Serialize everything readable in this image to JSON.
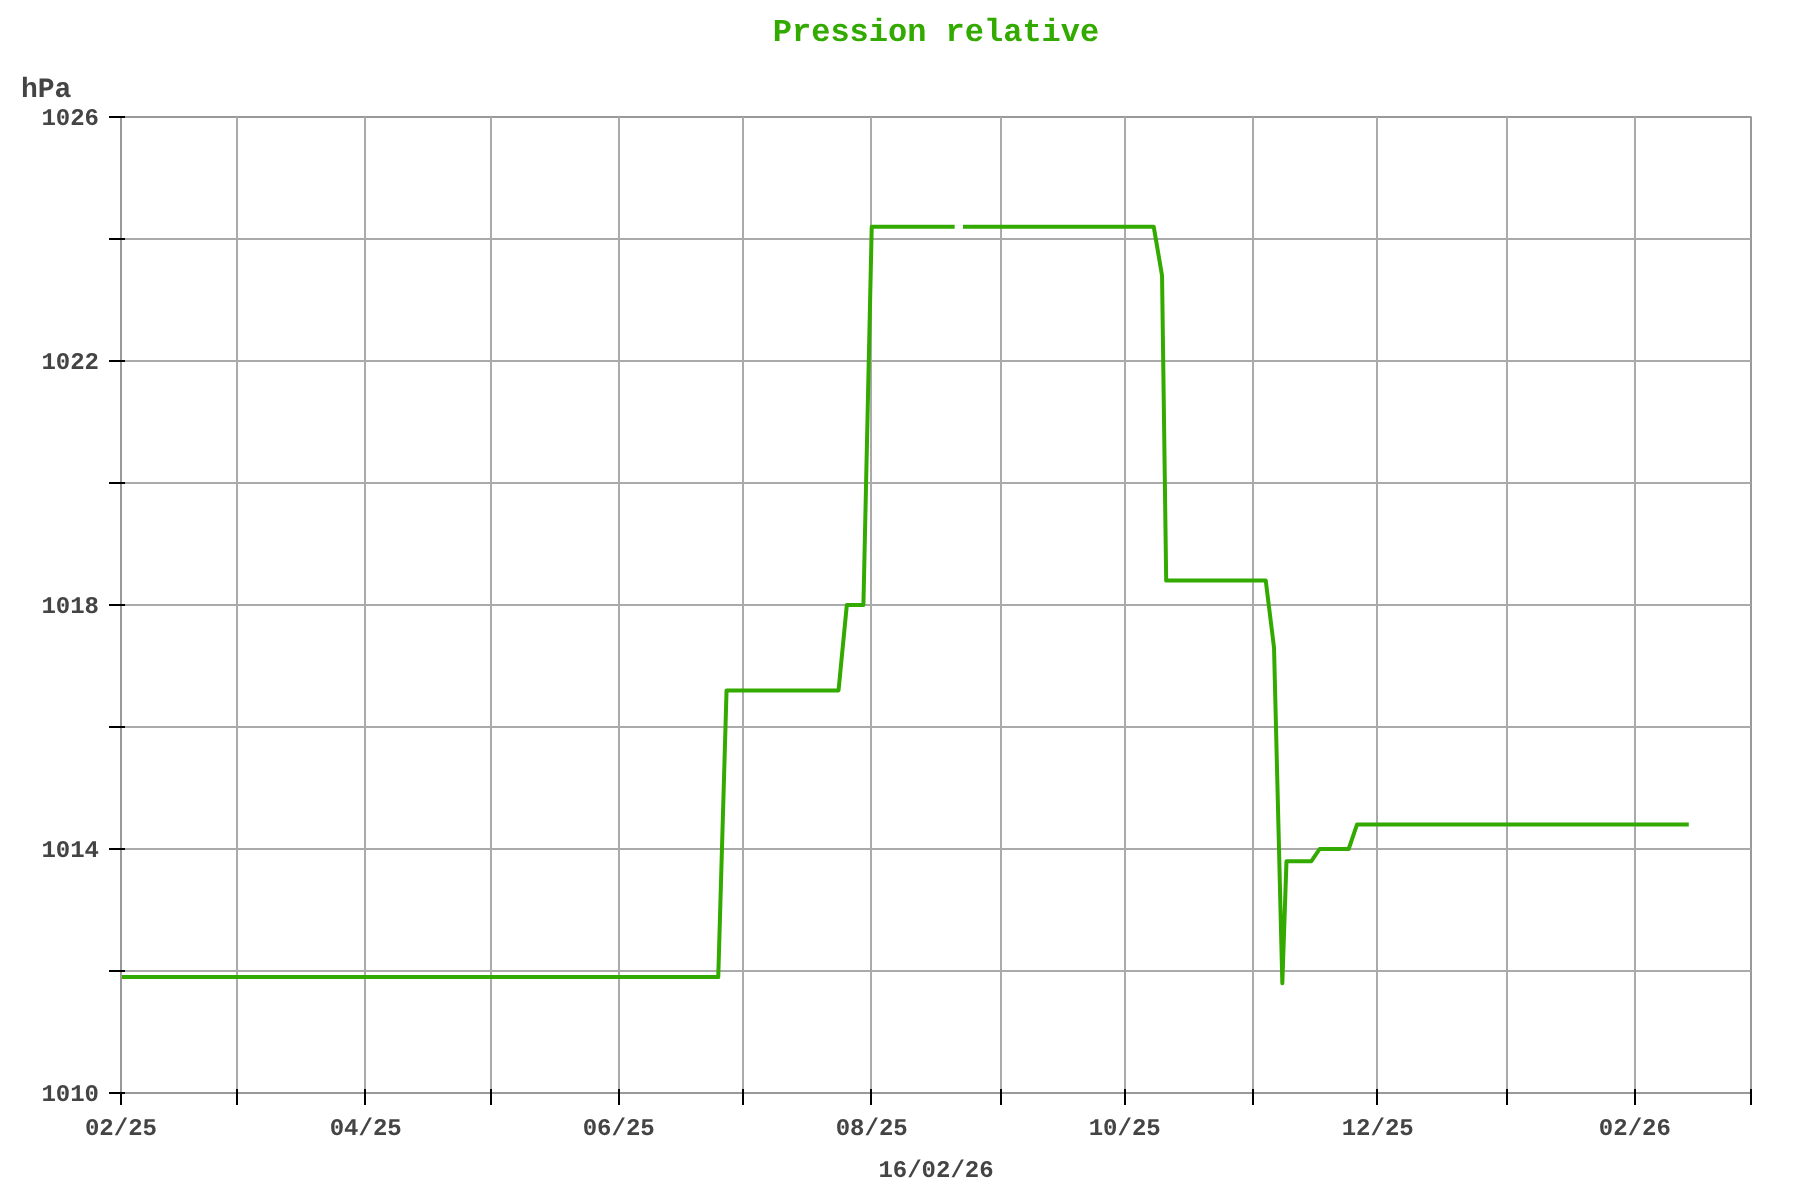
{
  "chart_data": {
    "type": "line",
    "title": "Pression relative",
    "ylabel": "hPa",
    "xlabel": "16/02/26",
    "x": [
      "2025-02-01",
      "2025-06-25",
      "2025-06-27",
      "2025-07-24",
      "2025-07-26",
      "2025-07-30",
      "2025-08-01",
      "2025-08-21",
      "2025-08-22",
      "2025-08-23",
      "2025-10-08",
      "2025-10-10",
      "2025-10-11",
      "2025-11-04",
      "2025-11-06",
      "2025-11-08",
      "2025-11-09",
      "2025-11-15",
      "2025-11-17",
      "2025-11-24",
      "2025-11-26",
      "2026-02-14"
    ],
    "series": [
      {
        "color": "#33aa00",
        "values": [
          1011.9,
          1011.9,
          1016.6,
          1016.6,
          1018.0,
          1018.0,
          1024.2,
          1024.2,
          null,
          1024.2,
          1024.2,
          1023.4,
          1018.4,
          1018.4,
          1017.3,
          1011.8,
          1013.8,
          1013.8,
          1014.0,
          1014.0,
          1014.4,
          1014.4
        ]
      }
    ],
    "xlim": [
      "2025-02-01",
      "2026-03-01"
    ],
    "xticks": [
      {
        "value": "2025-02-01",
        "label": "02/25"
      },
      {
        "value": "2025-03-01",
        "label": null
      },
      {
        "value": "2025-04-01",
        "label": "04/25"
      },
      {
        "value": "2025-05-01",
        "label": null
      },
      {
        "value": "2025-06-01",
        "label": "06/25"
      },
      {
        "value": "2025-07-01",
        "label": null
      },
      {
        "value": "2025-08-01",
        "label": "08/25"
      },
      {
        "value": "2025-09-01",
        "label": null
      },
      {
        "value": "2025-10-01",
        "label": "10/25"
      },
      {
        "value": "2025-11-01",
        "label": null
      },
      {
        "value": "2025-12-01",
        "label": "12/25"
      },
      {
        "value": "2026-01-01",
        "label": null
      },
      {
        "value": "2026-02-01",
        "label": "02/26"
      },
      {
        "value": "2026-03-01",
        "label": null
      }
    ],
    "ylim": [
      1010,
      1026
    ],
    "yticks": [
      1010,
      {
        "value": 1012,
        "label": null
      },
      1014,
      {
        "value": 1016,
        "label": null
      },
      1018,
      {
        "value": 1020,
        "label": null
      },
      1022,
      {
        "value": 1024,
        "label": null
      },
      1026
    ],
    "grid": true,
    "marker": "none",
    "line_style": "solid"
  }
}
